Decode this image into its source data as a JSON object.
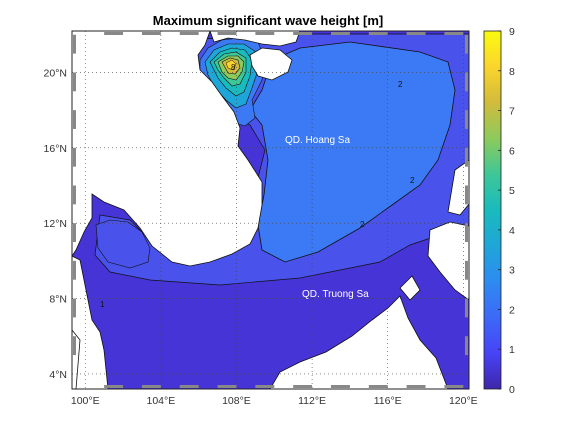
{
  "title": "Maximum significant wave height [m]",
  "map": {
    "lon_range": [
      99.3,
      120.3
    ],
    "lat_range": [
      3.2,
      22.2
    ],
    "lon_ticks": [
      {
        "value": 100,
        "label": "100°E"
      },
      {
        "value": 104,
        "label": "104°E"
      },
      {
        "value": 108,
        "label": "108°E"
      },
      {
        "value": 112,
        "label": "112°E"
      },
      {
        "value": 116,
        "label": "116°E"
      },
      {
        "value": 120,
        "label": "120°E"
      }
    ],
    "lat_ticks": [
      {
        "value": 4,
        "label": "4°N"
      },
      {
        "value": 8,
        "label": "8°N"
      },
      {
        "value": 12,
        "label": "12°N"
      },
      {
        "value": 16,
        "label": "16°N"
      },
      {
        "value": 20,
        "label": "20°N"
      }
    ],
    "grid": "dotted",
    "land_color": "#ffffff",
    "place_labels": [
      "QD. Hoang Sa",
      "QD. Truong Sa"
    ],
    "contour_labels": [
      "2",
      "2",
      "2",
      "1",
      "8"
    ]
  },
  "colorbar": {
    "min": 0,
    "max": 9,
    "tick_labels": [
      "0",
      "1",
      "2",
      "3",
      "4",
      "5",
      "6",
      "7",
      "8",
      "9"
    ],
    "colormap": "parula",
    "colors": [
      "#3e26a8",
      "#4743f8",
      "#3c69f8",
      "#2d8bf1",
      "#1fa6d8",
      "#19bbbd",
      "#3ec797",
      "#8dca5c",
      "#d2bb3b",
      "#fbd52d",
      "#f9fb0e"
    ]
  }
}
